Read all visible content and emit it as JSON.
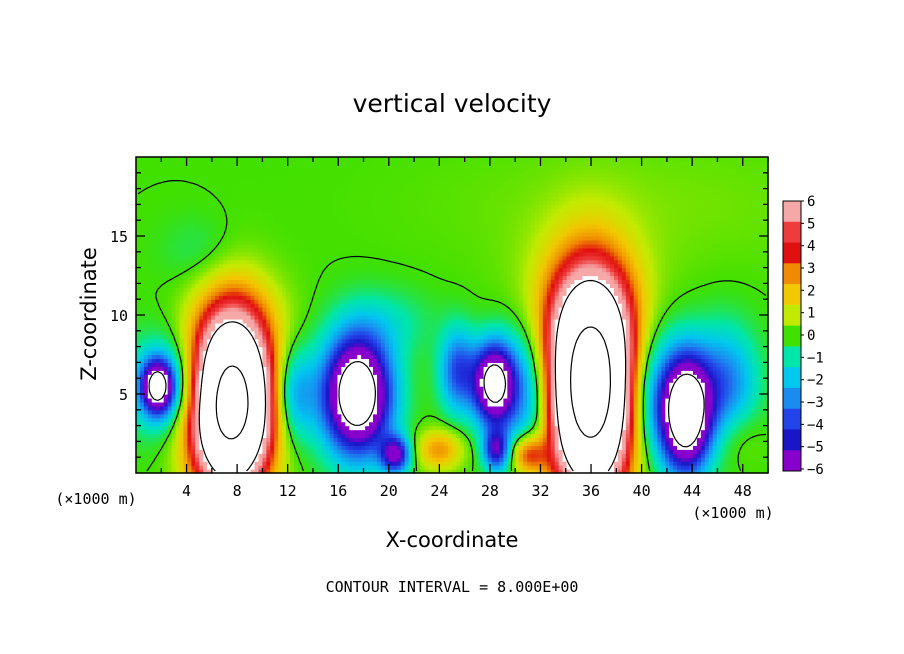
{
  "chart_data": {
    "type": "heatmap",
    "title": "vertical velocity",
    "xlabel": "X-coordinate",
    "ylabel": "Z-coordinate",
    "x_unit_label": "(×1000 m)",
    "y_unit_label": "(×1000 m)",
    "xlim": [
      0,
      50
    ],
    "ylim": [
      0,
      20
    ],
    "x_ticks": [
      "4",
      "8",
      "12",
      "16",
      "20",
      "24",
      "28",
      "32",
      "36",
      "40",
      "44",
      "48"
    ],
    "y_ticks": [
      "5",
      "10",
      "15"
    ],
    "colorbar": {
      "min": -6,
      "max": 6,
      "labels": [
        "6",
        "5",
        "4",
        "3",
        "2",
        "1",
        "0",
        "−1",
        "−2",
        "−3",
        "−4",
        "−5",
        "−6"
      ],
      "colors": [
        "#f4a8a8",
        "#ee3c3c",
        "#e01010",
        "#f08a00",
        "#f2c800",
        "#c2ea00",
        "#40e000",
        "#00e6aa",
        "#00c8ee",
        "#1a8cf0",
        "#2244e8",
        "#1a16c8",
        "#8800cc"
      ]
    },
    "contour_interval_text": "CONTOUR INTERVAL = 8.000E+00",
    "features": [
      {
        "x": 7.5,
        "z": 4.5,
        "sigma_x": 2.1,
        "sigma_z": 3.6,
        "w": 20
      },
      {
        "x": 36.0,
        "z": 5.5,
        "sigma_x": 2.3,
        "sigma_z": 4.3,
        "w": 22
      },
      {
        "x": 17.5,
        "z": 5.0,
        "sigma_x": 1.8,
        "sigma_z": 2.5,
        "w": -11
      },
      {
        "x": 1.7,
        "z": 5.5,
        "sigma_x": 0.8,
        "sigma_z": 1.1,
        "w": -8
      },
      {
        "x": 28.3,
        "z": 5.7,
        "sigma_x": 1.1,
        "sigma_z": 1.7,
        "w": -9
      },
      {
        "x": 43.5,
        "z": 3.8,
        "sigma_x": 1.3,
        "sigma_z": 2.4,
        "w": -11
      },
      {
        "x": 25.5,
        "z": 6.5,
        "sigma_x": 1.0,
        "sigma_z": 1.8,
        "w": -4
      },
      {
        "x": 20.5,
        "z": 1.2,
        "sigma_x": 0.8,
        "sigma_z": 0.8,
        "w": -6
      },
      {
        "x": 28.5,
        "z": 1.5,
        "sigma_x": 0.7,
        "sigma_z": 0.9,
        "w": -5
      },
      {
        "x": 3.0,
        "z": 5.5,
        "sigma_x": 2.5,
        "sigma_z": 2.0,
        "w": -3.5
      },
      {
        "x": 12.5,
        "z": 5.0,
        "sigma_x": 1.2,
        "sigma_z": 2.0,
        "w": -3
      },
      {
        "x": 31.5,
        "z": 5.0,
        "sigma_x": 2.0,
        "sigma_z": 3.0,
        "w": -4
      },
      {
        "x": 40.0,
        "z": 5.0,
        "sigma_x": 2.0,
        "sigma_z": 3.0,
        "w": -4
      },
      {
        "x": 46.5,
        "z": 5.5,
        "sigma_x": 1.8,
        "sigma_z": 2.5,
        "w": -3.5
      },
      {
        "x": 24.0,
        "z": 1.5,
        "sigma_x": 1.3,
        "sigma_z": 0.9,
        "w": 2.8
      },
      {
        "x": 31.0,
        "z": 1.2,
        "sigma_x": 1.0,
        "sigma_z": 0.9,
        "w": 4
      },
      {
        "x": 47.5,
        "z": 2.5,
        "sigma_x": 1.5,
        "sigma_z": 1.5,
        "w": 1
      },
      {
        "x": 35.5,
        "z": 11.0,
        "sigma_x": 3.5,
        "sigma_z": 3.0,
        "w": 1.5
      },
      {
        "x": 9.0,
        "z": 10.0,
        "sigma_x": 2.5,
        "sigma_z": 2.0,
        "w": 0.8
      },
      {
        "x": 40.0,
        "z": 17.0,
        "sigma_x": 12.0,
        "sigma_z": 3.0,
        "w": 0.4
      },
      {
        "x": 5.0,
        "z": 14.0,
        "sigma_x": 2.0,
        "sigma_z": 1.5,
        "w": -0.6
      },
      {
        "x": 20.0,
        "z": 9.5,
        "sigma_x": 2.5,
        "sigma_z": 1.5,
        "w": -1.0
      }
    ]
  }
}
